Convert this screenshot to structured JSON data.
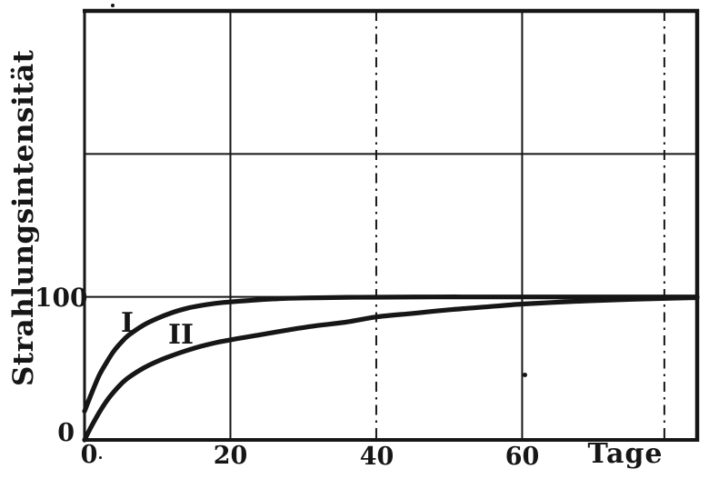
{
  "figure_title": "Strahlungsintensitaet growth curves",
  "axes": {
    "y_label": "Strahlungsintensität",
    "x_label": "Tage",
    "y_tick_100": "100",
    "y_tick_0": "0",
    "x_tick_0": "0",
    "x_tick_20": "20",
    "x_tick_40": "40",
    "x_tick_60": "60"
  },
  "curve_labels": {
    "curve1": "I",
    "curve2": "II"
  },
  "colors": {
    "ink": "#161616",
    "paper": "#ffffff"
  },
  "chart_data": {
    "type": "line",
    "title": "",
    "xlabel": "Tage",
    "ylabel": "Strahlungsintensität",
    "xlim": [
      0,
      84
    ],
    "ylim": [
      0,
      300
    ],
    "x_ticks": [
      0,
      20,
      40,
      60
    ],
    "y_ticks": [
      0,
      100
    ],
    "legend": "inline labels I and II near curves",
    "grid": {
      "vertical_solid_x": [
        20,
        60
      ],
      "vertical_dashdot_x": [
        40,
        79.5
      ],
      "horizontal_solid_y": [
        100,
        200
      ]
    },
    "series": [
      {
        "name": "I",
        "x": [
          0,
          1,
          2,
          3,
          4,
          5,
          6,
          8,
          10,
          12,
          14,
          16,
          18,
          20,
          24,
          28,
          32,
          36,
          40,
          48,
          56,
          64,
          74,
          84
        ],
        "y": [
          20,
          33,
          45,
          54,
          62,
          68,
          73,
          80,
          85,
          89,
          92,
          94,
          95.5,
          96.5,
          98,
          99,
          99.4,
          99.7,
          99.8,
          100,
          100,
          100,
          100,
          100
        ]
      },
      {
        "name": "II",
        "x": [
          0,
          1,
          2,
          3,
          4,
          5,
          6,
          8,
          10,
          12,
          14,
          16,
          18,
          20,
          24,
          28,
          32,
          36,
          40,
          45,
          50,
          55,
          60,
          66,
          72,
          78,
          84
        ],
        "y": [
          0,
          10,
          19,
          27,
          33.5,
          39,
          43.5,
          50,
          55,
          59,
          62.5,
          65.5,
          68,
          70,
          73.5,
          77,
          80,
          82.5,
          86,
          88.5,
          91,
          93,
          95,
          96.6,
          97.8,
          98.8,
          99.5
        ]
      }
    ]
  }
}
